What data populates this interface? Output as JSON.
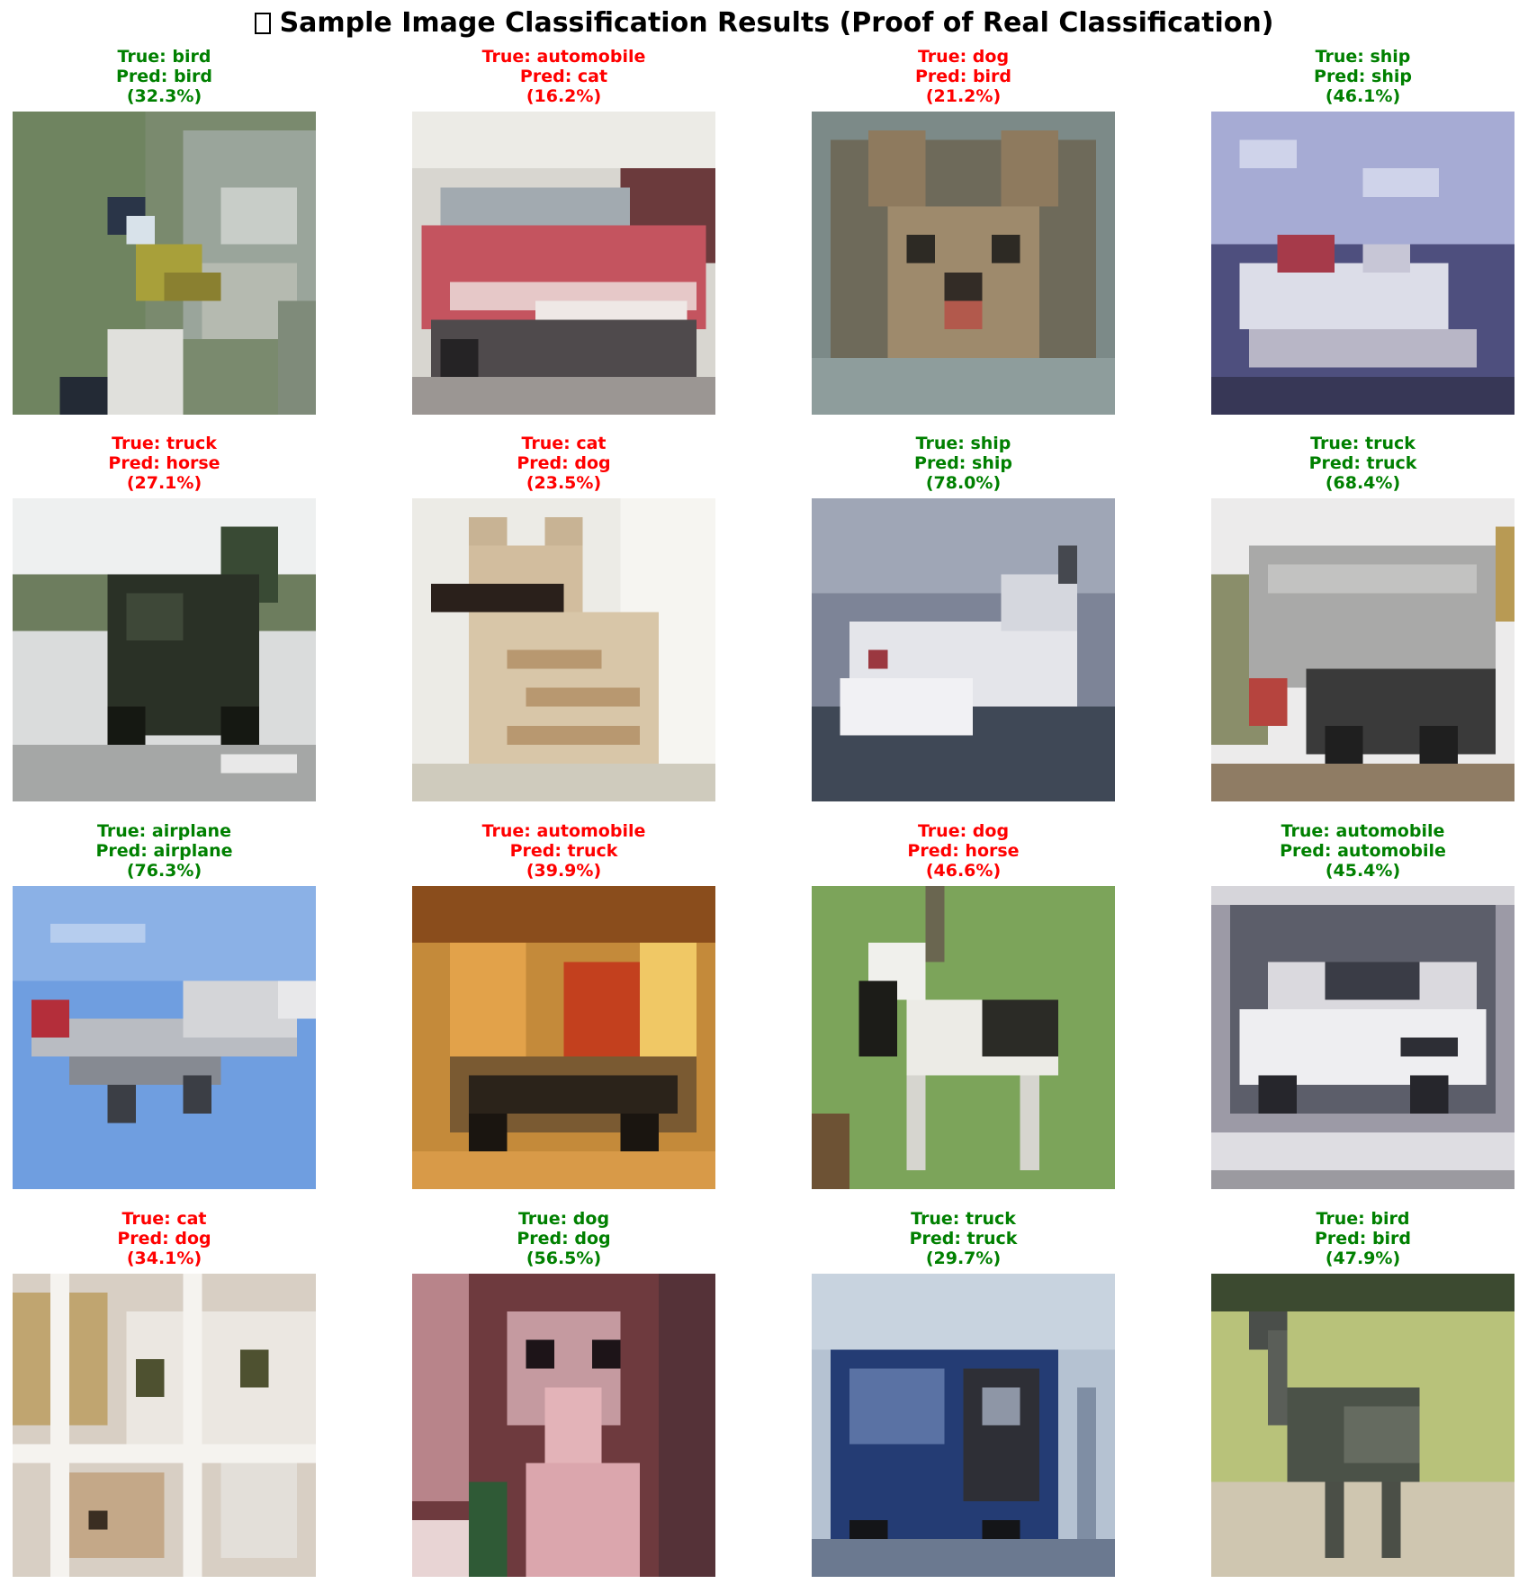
{
  "figure": {
    "title": "Sample Image Classification Results (Proof of Real Classification)",
    "title_icon": "missing-glyph-icon"
  },
  "colors": {
    "correct": "#008000",
    "wrong": "#ff0000"
  },
  "samples": [
    {
      "true_text": "True: bird",
      "pred_text": "Pred: bird",
      "conf_text": "(32.3%)",
      "status": "correct",
      "subject": "bird on rock"
    },
    {
      "true_text": "True: automobile",
      "pred_text": "Pred: cat",
      "conf_text": "(16.2%)",
      "status": "wrong",
      "subject": "red car"
    },
    {
      "true_text": "True: dog",
      "pred_text": "Pred: bird",
      "conf_text": "(21.2%)",
      "status": "wrong",
      "subject": "dog face"
    },
    {
      "true_text": "True: ship",
      "pred_text": "Pred: ship",
      "conf_text": "(46.1%)",
      "status": "correct",
      "subject": "ship"
    },
    {
      "true_text": "True: truck",
      "pred_text": "Pred: horse",
      "conf_text": "(27.1%)",
      "status": "wrong",
      "subject": "dark truck"
    },
    {
      "true_text": "True: cat",
      "pred_text": "Pred: dog",
      "conf_text": "(23.5%)",
      "status": "wrong",
      "subject": "tabby cat"
    },
    {
      "true_text": "True: ship",
      "pred_text": "Pred: ship",
      "conf_text": "(78.0%)",
      "status": "correct",
      "subject": "white ship"
    },
    {
      "true_text": "True: truck",
      "pred_text": "Pred: truck",
      "conf_text": "(68.4%)",
      "status": "correct",
      "subject": "grey truck"
    },
    {
      "true_text": "True: airplane",
      "pred_text": "Pred: airplane",
      "conf_text": "(76.3%)",
      "status": "correct",
      "subject": "airplane"
    },
    {
      "true_text": "True: automobile",
      "pred_text": "Pred: truck",
      "conf_text": "(39.9%)",
      "status": "wrong",
      "subject": "car in street"
    },
    {
      "true_text": "True: dog",
      "pred_text": "Pred: horse",
      "conf_text": "(46.6%)",
      "status": "wrong",
      "subject": "dog on grass"
    },
    {
      "true_text": "True: automobile",
      "pred_text": "Pred: automobile",
      "conf_text": "(45.4%)",
      "status": "correct",
      "subject": "white car"
    },
    {
      "true_text": "True: cat",
      "pred_text": "Pred: dog",
      "conf_text": "(34.1%)",
      "status": "wrong",
      "subject": "cat behind window"
    },
    {
      "true_text": "True: dog",
      "pred_text": "Pred: dog",
      "conf_text": "(56.5%)",
      "status": "correct",
      "subject": "pink dog"
    },
    {
      "true_text": "True: truck",
      "pred_text": "Pred: truck",
      "conf_text": "(29.7%)",
      "status": "correct",
      "subject": "blue truck"
    },
    {
      "true_text": "True: bird",
      "pred_text": "Pred: bird",
      "conf_text": "(47.9%)",
      "status": "correct",
      "subject": "ostrich"
    }
  ]
}
